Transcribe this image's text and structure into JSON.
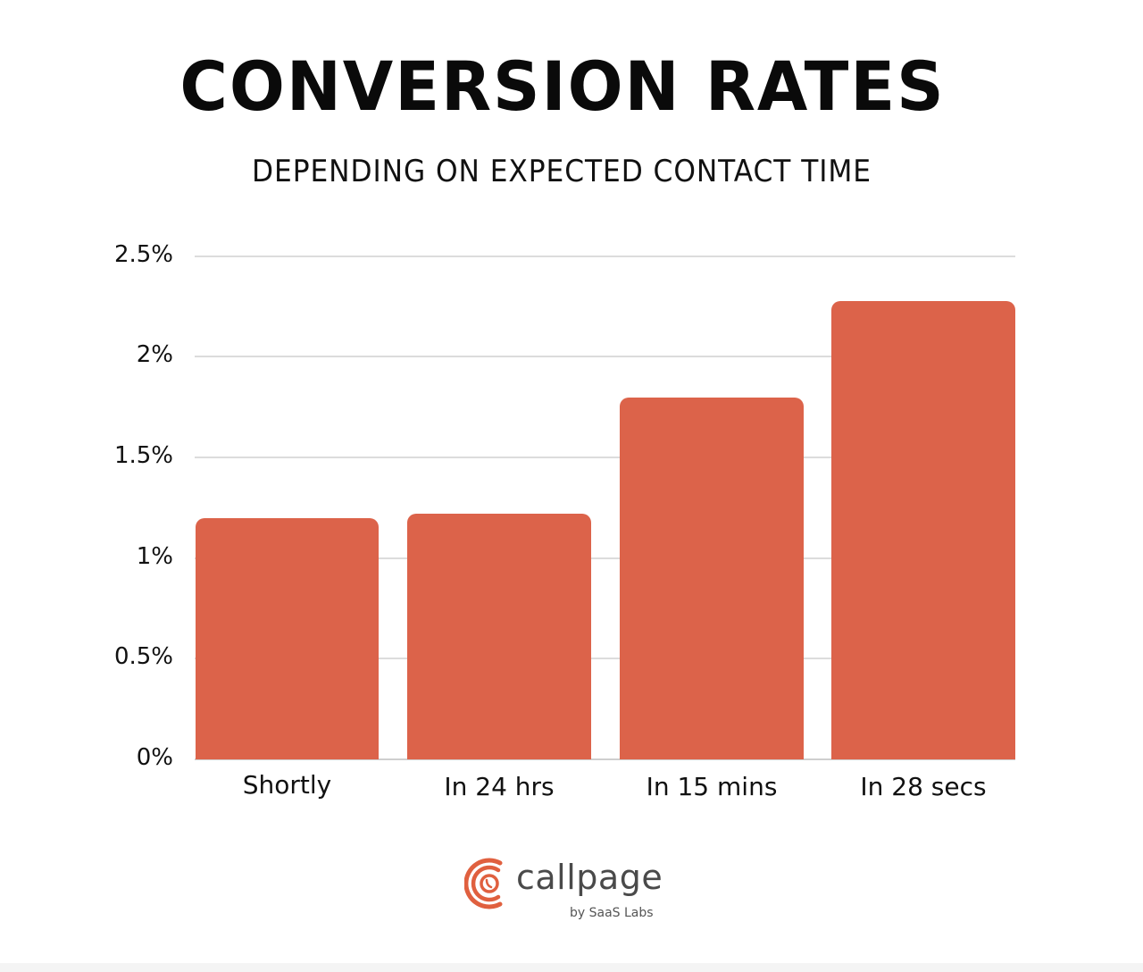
{
  "chart_data": {
    "type": "bar",
    "title": "CONVERSION RATES",
    "subtitle": "DEPENDING ON EXPECTED CONTACT TIME",
    "categories": [
      "Shortly",
      "In 24 hrs",
      "In 15 mins",
      "In 28 secs"
    ],
    "values": [
      1.2,
      1.22,
      1.8,
      2.28
    ],
    "unit": "%",
    "xlabel": "",
    "ylabel": "",
    "ylim": [
      0,
      2.5
    ],
    "yticks": [
      "0%",
      "0.5%",
      "1%",
      "1.5%",
      "2%",
      "2.5%"
    ],
    "grid": true,
    "legend": null,
    "bar_color": "#dc634a"
  },
  "header": {
    "title": "CONVERSION RATES",
    "subtitle": "DEPENDING ON EXPECTED CONTACT TIME"
  },
  "axis": {
    "yticks": [
      "2.5%",
      "2%",
      "1.5%",
      "1%",
      "0.5%",
      "0%"
    ]
  },
  "bars": [
    {
      "label": "Shortly",
      "value": 1.2
    },
    {
      "label": "In 24 hrs",
      "value": 1.22
    },
    {
      "label": "In 15 mins",
      "value": 1.8
    },
    {
      "label": "In 28 secs",
      "value": 2.28
    }
  ],
  "logo": {
    "name": "callpage",
    "tagline": "by SaaS Labs",
    "icon": "phone-signal-icon",
    "color": "#e0603f"
  }
}
